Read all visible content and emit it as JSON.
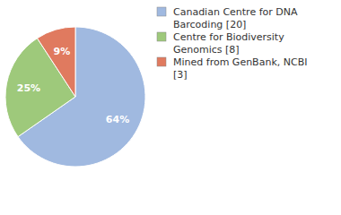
{
  "chart_data": {
    "type": "pie",
    "categories": [
      "Canadian Centre for DNA Barcoding [20]",
      "Centre for Biodiversity Genomics [8]",
      "Mined from GenBank, NCBI [3]"
    ],
    "values": [
      64,
      25,
      9
    ],
    "value_labels": [
      "64%",
      "25%",
      "9%"
    ],
    "colors": [
      "#a0b9e0",
      "#9ec97b",
      "#e07a5f"
    ],
    "data_labels": true,
    "legend": "upper right"
  }
}
